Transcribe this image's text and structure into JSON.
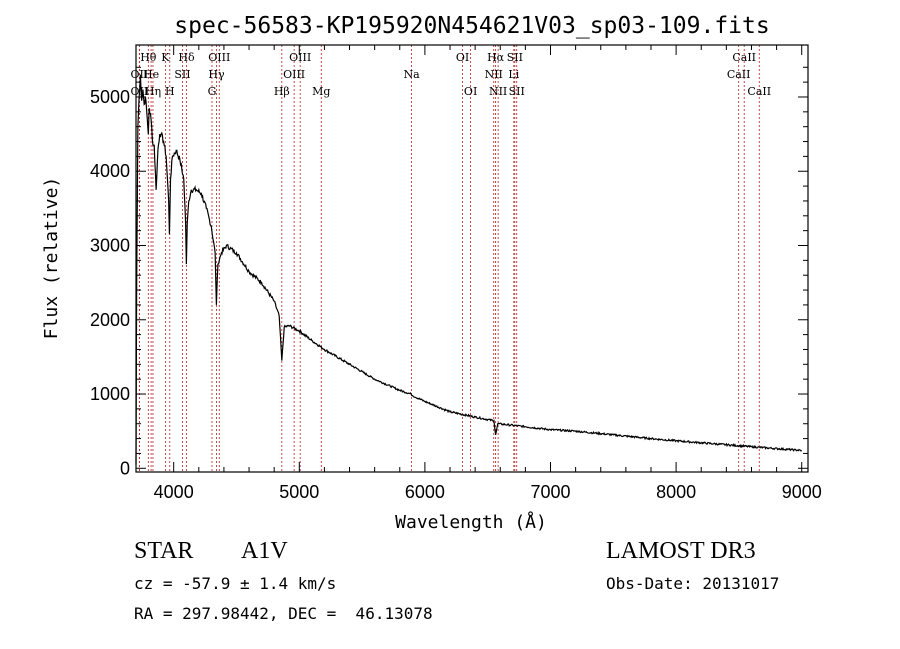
{
  "chart_data": {
    "type": "line",
    "title": "spec-56583-KP195920N454621V03_sp03-109.fits",
    "xlabel": "Wavelength (Å)",
    "ylabel": "Flux (relative)",
    "xlim": [
      3700,
      9050
    ],
    "ylim": [
      -50,
      5700
    ],
    "xticks": [
      4000,
      5000,
      6000,
      7000,
      8000,
      9000
    ],
    "yticks": [
      0,
      1000,
      2000,
      3000,
      4000,
      5000
    ],
    "series": [
      {
        "name": "spectrum",
        "x": [
          3700,
          3705,
          3715,
          3725,
          3735,
          3745,
          3755,
          3765,
          3775,
          3790,
          3798,
          3805,
          3820,
          3835,
          3845,
          3860,
          3875,
          3889,
          3900,
          3920,
          3940,
          3960,
          3966,
          3975,
          3990,
          4020,
          4050,
          4080,
          4095,
          4101,
          4108,
          4120,
          4140,
          4180,
          4220,
          4260,
          4300,
          4330,
          4340,
          4352,
          4380,
          4420,
          4500,
          4600,
          4700,
          4800,
          4840,
          4861,
          4880,
          4920,
          5000,
          5100,
          5200,
          5400,
          5600,
          5800,
          5890,
          5900,
          6000,
          6200,
          6400,
          6550,
          6563,
          6580,
          6800,
          7000,
          7200,
          7500,
          7800,
          8000,
          8300,
          8600,
          9000
        ],
        "values": [
          50,
          2400,
          4600,
          5000,
          5300,
          4950,
          5100,
          4900,
          5000,
          4700,
          4500,
          4850,
          4700,
          4350,
          4350,
          3750,
          4300,
          4500,
          4500,
          4400,
          4200,
          3600,
          3150,
          3900,
          4200,
          4280,
          4150,
          3900,
          3300,
          2750,
          3300,
          3600,
          3750,
          3750,
          3700,
          3500,
          3250,
          2900,
          2200,
          2750,
          2900,
          3000,
          2900,
          2650,
          2500,
          2250,
          2050,
          1450,
          1900,
          1920,
          1850,
          1720,
          1600,
          1400,
          1200,
          1050,
          1000,
          980,
          900,
          760,
          690,
          640,
          450,
          600,
          560,
          520,
          500,
          450,
          400,
          370,
          330,
          290,
          240
        ]
      }
    ],
    "spectral_lines": [
      {
        "label": "Hθ",
        "wavelength": 3798,
        "row": 1
      },
      {
        "label": "OII",
        "wavelength": 3727,
        "row": 2
      },
      {
        "label": "OII",
        "wavelength": 3727,
        "row": 3
      },
      {
        "label": "He",
        "wavelength": 3820,
        "row": 2
      },
      {
        "label": "Hη",
        "wavelength": 3835,
        "row": 3
      },
      {
        "label": "K",
        "wavelength": 3934,
        "row": 1
      },
      {
        "label": "H",
        "wavelength": 3969,
        "row": 3
      },
      {
        "label": "Hδ",
        "wavelength": 4102,
        "row": 1
      },
      {
        "label": "SII",
        "wavelength": 4070,
        "row": 2
      },
      {
        "label": "OIII",
        "wavelength": 4363,
        "row": 1
      },
      {
        "label": "Hγ",
        "wavelength": 4341,
        "row": 2
      },
      {
        "label": "G",
        "wavelength": 4305,
        "row": 3
      },
      {
        "label": "Hβ",
        "wavelength": 4861,
        "row": 3
      },
      {
        "label": "OIII",
        "wavelength": 5007,
        "row": 1
      },
      {
        "label": "OIII",
        "wavelength": 4959,
        "row": 2
      },
      {
        "label": "Mg",
        "wavelength": 5175,
        "row": 3
      },
      {
        "label": "Na",
        "wavelength": 5894,
        "row": 2
      },
      {
        "label": "OI",
        "wavelength": 6300,
        "row": 1
      },
      {
        "label": "OI",
        "wavelength": 6364,
        "row": 3
      },
      {
        "label": "Hα",
        "wavelength": 6563,
        "row": 1
      },
      {
        "label": "NII",
        "wavelength": 6548,
        "row": 2
      },
      {
        "label": "NII",
        "wavelength": 6583,
        "row": 3
      },
      {
        "label": "SII",
        "wavelength": 6716,
        "row": 1
      },
      {
        "label": "Li",
        "wavelength": 6708,
        "row": 2
      },
      {
        "label": "SII",
        "wavelength": 6731,
        "row": 3
      },
      {
        "label": "CaII",
        "wavelength": 8542,
        "row": 1
      },
      {
        "label": "CaII",
        "wavelength": 8498,
        "row": 2
      },
      {
        "label": "CaII",
        "wavelength": 8662,
        "row": 3
      }
    ],
    "line_color": "#b22222",
    "spectrum_color": "#000000"
  },
  "footer": {
    "object_class": "STAR",
    "subclass": "A1V",
    "survey": "LAMOST DR3",
    "redshift": "cz = -57.9 ± 1.4 km/s",
    "obs_date": "Obs-Date: 20131017",
    "coords": "RA = 297.98442, DEC =  46.13078"
  }
}
